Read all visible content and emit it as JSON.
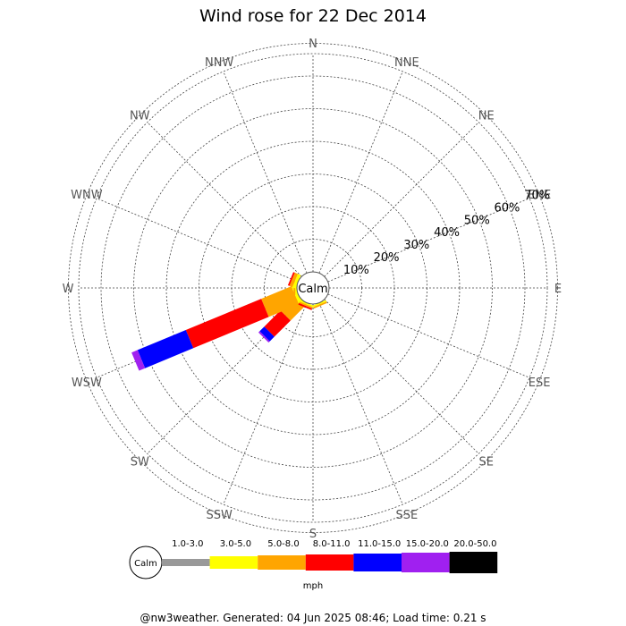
{
  "chart_data": {
    "type": "windrose",
    "title": "Wind rose for 22 Dec 2014",
    "calm_label": "Calm",
    "directions": [
      "N",
      "NNE",
      "NE",
      "ENE",
      "E",
      "ESE",
      "SE",
      "SSE",
      "S",
      "SSW",
      "SW",
      "WSW",
      "W",
      "WNW",
      "NW",
      "NNW"
    ],
    "ring_labels": [
      "10%",
      "20%",
      "30%",
      "40%",
      "50%",
      "60%",
      "70%"
    ],
    "ring_values": [
      10,
      20,
      30,
      40,
      50,
      60,
      70
    ],
    "speed_bins": [
      "1.0-3.0",
      "3.0-5.0",
      "5.0-8.0",
      "8.0-11.0",
      "11.0-15.0",
      "15.0-20.0",
      "20.0-50.0"
    ],
    "bin_colors": [
      "#999999",
      "#ffff00",
      "#ffa500",
      "#ff0000",
      "#0000ff",
      "#a020f0",
      "#000000"
    ],
    "unit": "mph",
    "series": [
      {
        "direction": "SW",
        "values": [
          0,
          1,
          6,
          7,
          2,
          0.5,
          0
        ]
      },
      {
        "direction": "WSW",
        "values": [
          0,
          1,
          10,
          25,
          16,
          2,
          0
        ]
      },
      {
        "direction": "W",
        "values": [
          0,
          0.5,
          0.5,
          0,
          0,
          0,
          0
        ]
      },
      {
        "direction": "WNW",
        "values": [
          0,
          1,
          1,
          0.5,
          0,
          0,
          0
        ]
      },
      {
        "direction": "SSW",
        "values": [
          0,
          0.5,
          0.5,
          0.5,
          0,
          0,
          0
        ]
      },
      {
        "direction": "SSE",
        "values": [
          0,
          0.5,
          0.5,
          0,
          0,
          0,
          0
        ]
      }
    ]
  },
  "footer": "@nw3weather. Generated: 04 Jun 2025 08:46; Load time: 0.21 s"
}
